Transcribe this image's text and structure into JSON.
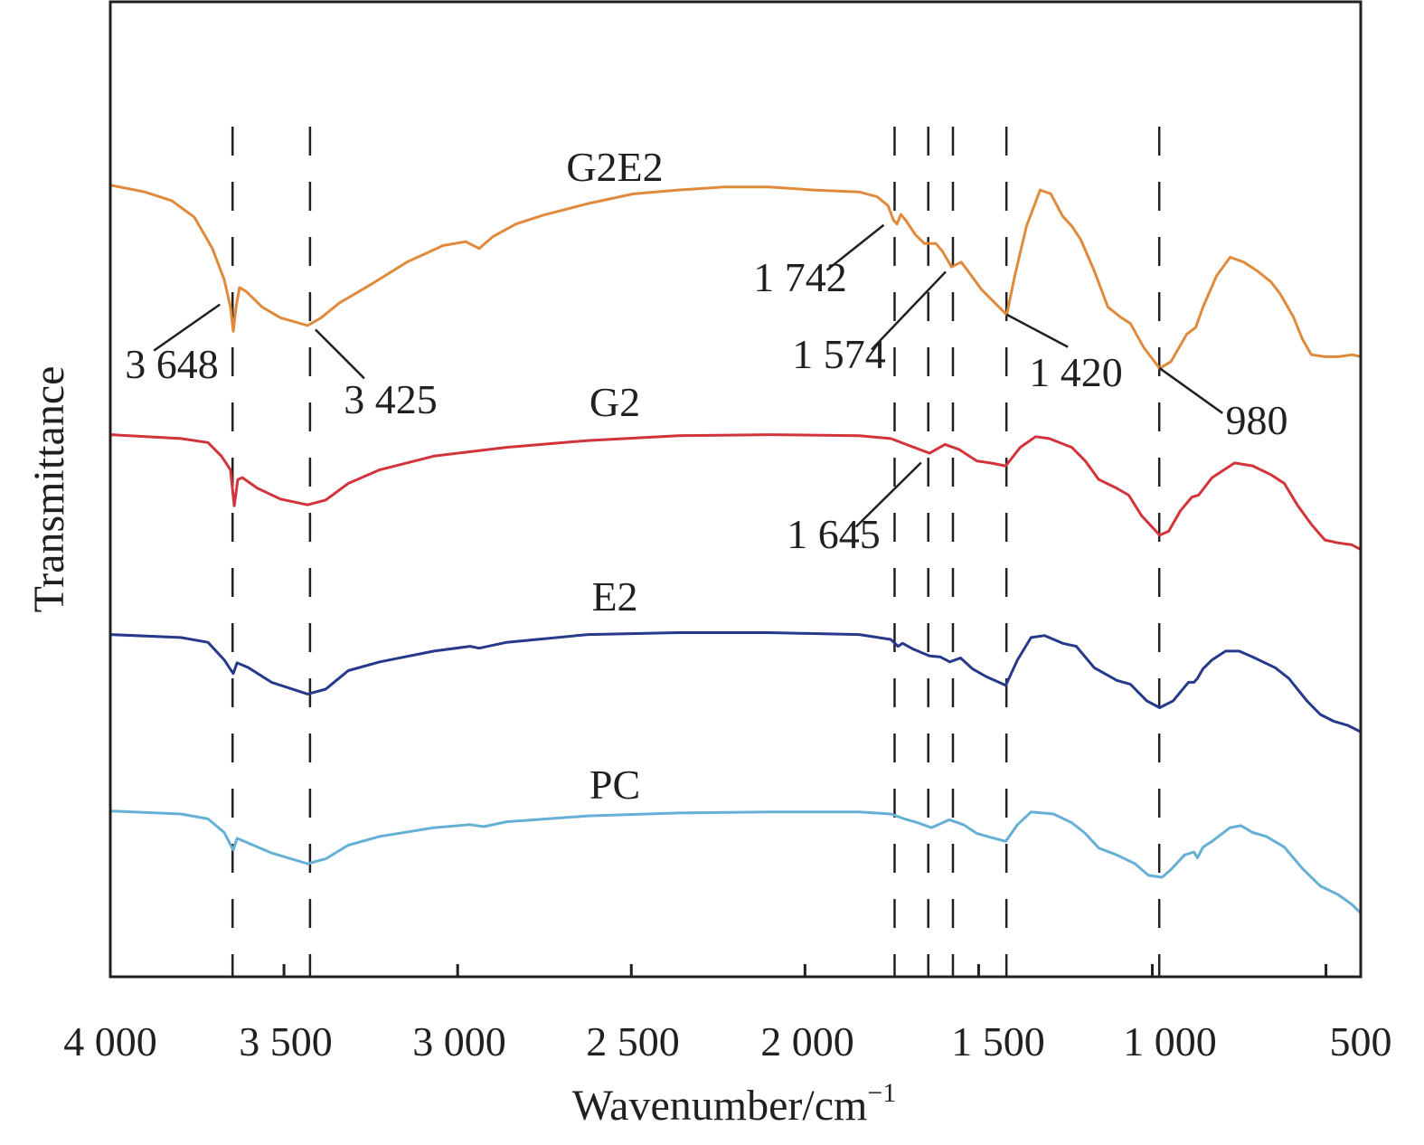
{
  "chart_data": {
    "type": "line",
    "title": "",
    "xlabel": "Wavenumber/cm",
    "xlabel_superscript": "−1",
    "ylabel": "Transmittance",
    "xlim": [
      4000,
      400
    ],
    "ylim": [
      0,
      100
    ],
    "x_reversed": true,
    "y_ticks_shown": false,
    "grid": false,
    "x_tick_labels": [
      {
        "value": 4000,
        "label": "4 000"
      },
      {
        "value": 3500,
        "label": "3 500"
      },
      {
        "value": 3000,
        "label": "3 000"
      },
      {
        "value": 2500,
        "label": "2 500"
      },
      {
        "value": 2000,
        "label": "2 000"
      },
      {
        "value": 1500,
        "label": "1 500"
      },
      {
        "value": 1000,
        "label": "1 000"
      },
      {
        "value": 500,
        "label": "500"
      }
    ],
    "minor_ticks": [
      3500,
      3000,
      2500,
      2000,
      1500,
      1000,
      500
    ],
    "reference_lines": [
      3648,
      3425,
      1742,
      1645,
      1574,
      1420,
      980
    ],
    "series": [
      {
        "name": "G2E2",
        "color": "#e08a3c",
        "x": [
          4000,
          3901,
          3823,
          3758,
          3706,
          3672,
          3654,
          3646,
          3638,
          3628,
          3609,
          3563,
          3510,
          3432,
          3393,
          3341,
          3250,
          3146,
          3042,
          2977,
          2938,
          2899,
          2833,
          2755,
          2625,
          2495,
          2365,
          2234,
          2104,
          1974,
          1844,
          1792,
          1761,
          1745,
          1735,
          1724,
          1708,
          1682,
          1656,
          1623,
          1604,
          1578,
          1550,
          1531,
          1492,
          1453,
          1419,
          1396,
          1362,
          1323,
          1292,
          1258,
          1232,
          1206,
          1167,
          1128,
          1089,
          1063,
          1024,
          979,
          946,
          901,
          875,
          854,
          815,
          776,
          737,
          698,
          659,
          633,
          594,
          568,
          542,
          503,
          464,
          425,
          399
        ],
        "y": [
          81.2,
          80.5,
          79.6,
          77.9,
          74.7,
          71.5,
          68.7,
          66.2,
          68.7,
          70.7,
          70.3,
          68.7,
          67.6,
          66.8,
          67.6,
          69.1,
          71.0,
          73.3,
          75.0,
          75.4,
          74.7,
          75.9,
          77.2,
          78.1,
          79.3,
          80.3,
          80.7,
          81.0,
          81.0,
          80.7,
          80.5,
          80.0,
          79.1,
          77.6,
          77.2,
          78.2,
          77.5,
          76.1,
          75.2,
          75.2,
          74.4,
          72.8,
          73.3,
          72.4,
          70.5,
          69.1,
          67.9,
          71.9,
          77.0,
          80.7,
          80.3,
          78.0,
          77.0,
          75.6,
          72.4,
          68.7,
          67.6,
          67.0,
          64.5,
          62.4,
          63.1,
          65.9,
          66.6,
          68.7,
          71.9,
          73.8,
          73.3,
          72.4,
          71.3,
          70.1,
          67.7,
          65.4,
          63.8,
          63.6,
          63.6,
          63.8,
          63.6
        ]
      },
      {
        "name": "G2",
        "color": "#d1343a",
        "x": [
          4000,
          3797,
          3719,
          3680,
          3654,
          3643,
          3633,
          3620,
          3576,
          3510,
          3432,
          3380,
          3315,
          3224,
          3068,
          2859,
          2625,
          2365,
          2104,
          1844,
          1753,
          1701,
          1641,
          1597,
          1557,
          1505,
          1466,
          1422,
          1380,
          1336,
          1297,
          1232,
          1193,
          1154,
          1102,
          1068,
          1031,
          979,
          953,
          919,
          886,
          867,
          828,
          763,
          711,
          659,
          620,
          581,
          542,
          503,
          464,
          425,
          399
        ],
        "y": [
          55.6,
          55.2,
          54.8,
          53.4,
          52.0,
          48.3,
          51.0,
          51.2,
          50.1,
          49.0,
          48.4,
          48.9,
          50.6,
          52.0,
          53.4,
          54.3,
          55.0,
          55.5,
          55.6,
          55.5,
          55.2,
          54.5,
          53.7,
          54.6,
          54.1,
          52.9,
          52.7,
          52.4,
          54.3,
          55.4,
          55.2,
          54.3,
          52.9,
          51.0,
          50.1,
          49.4,
          47.3,
          45.3,
          45.7,
          47.8,
          49.2,
          49.4,
          51.2,
          52.7,
          52.4,
          51.5,
          50.6,
          48.3,
          46.4,
          44.8,
          44.5,
          44.3,
          43.8
        ]
      },
      {
        "name": "E2",
        "color": "#27398a",
        "x": [
          4000,
          3797,
          3719,
          3672,
          3646,
          3635,
          3602,
          3536,
          3432,
          3380,
          3315,
          3224,
          3068,
          2964,
          2938,
          2859,
          2625,
          2365,
          2104,
          1844,
          1753,
          1732,
          1719,
          1688,
          1641,
          1610,
          1583,
          1552,
          1518,
          1479,
          1422,
          1388,
          1349,
          1310,
          1258,
          1219,
          1167,
          1102,
          1063,
          1016,
          979,
          940,
          896,
          880,
          870,
          854,
          828,
          789,
          750,
          711,
          646,
          607,
          555,
          516,
          477,
          438,
          399
        ],
        "y": [
          35.1,
          34.8,
          34.3,
          32.5,
          31.1,
          32.2,
          31.7,
          30.2,
          29.0,
          29.5,
          31.4,
          32.3,
          33.4,
          33.9,
          33.7,
          34.3,
          35.1,
          35.3,
          35.3,
          35.1,
          34.6,
          33.9,
          34.2,
          33.6,
          32.9,
          32.8,
          32.3,
          32.7,
          31.6,
          30.8,
          29.9,
          32.5,
          34.8,
          35.0,
          34.2,
          33.9,
          31.7,
          30.4,
          30.0,
          28.3,
          27.6,
          28.3,
          30.2,
          30.2,
          30.6,
          31.6,
          32.5,
          33.4,
          33.4,
          32.8,
          31.7,
          30.6,
          28.3,
          26.9,
          26.2,
          25.8,
          25.1
        ]
      },
      {
        "name": "PC",
        "color": "#66b0d6",
        "x": [
          4000,
          3797,
          3719,
          3672,
          3646,
          3635,
          3602,
          3536,
          3432,
          3380,
          3315,
          3224,
          3068,
          2964,
          2925,
          2859,
          2625,
          2365,
          2104,
          1844,
          1753,
          1714,
          1675,
          1636,
          1584,
          1544,
          1505,
          1466,
          1422,
          1388,
          1349,
          1284,
          1232,
          1193,
          1154,
          1102,
          1050,
          1011,
          972,
          946,
          907,
          880,
          870,
          854,
          828,
          776,
          745,
          711,
          672,
          620,
          568,
          516,
          464,
          425,
          399
        ],
        "y": [
          17.0,
          16.7,
          16.2,
          14.8,
          13.0,
          14.2,
          13.7,
          12.7,
          11.6,
          12.1,
          13.5,
          14.4,
          15.3,
          15.6,
          15.4,
          15.9,
          16.5,
          16.8,
          16.9,
          16.9,
          16.7,
          16.2,
          15.8,
          15.3,
          16.1,
          15.6,
          14.7,
          14.3,
          13.9,
          15.6,
          16.9,
          16.7,
          15.8,
          14.7,
          13.2,
          12.5,
          11.6,
          10.4,
          10.2,
          11.0,
          12.5,
          12.8,
          12.2,
          13.3,
          13.9,
          15.3,
          15.5,
          14.8,
          14.4,
          13.3,
          11.1,
          9.3,
          8.4,
          7.4,
          6.5
        ]
      }
    ],
    "series_labels": [
      {
        "series": "G2E2",
        "text": "G2E2"
      },
      {
        "series": "G2",
        "text": "G2"
      },
      {
        "series": "E2",
        "text": "E2"
      },
      {
        "series": "PC",
        "text": "PC"
      }
    ],
    "annotations": [
      {
        "series": "G2E2",
        "x": 3648,
        "text": "3 648"
      },
      {
        "series": "G2E2",
        "x": 3425,
        "text": "3 425"
      },
      {
        "series": "G2E2",
        "x": 1742,
        "text": "1 742"
      },
      {
        "series": "G2E2",
        "x": 1574,
        "text": "1 574"
      },
      {
        "series": "G2E2",
        "x": 1420,
        "text": "1 420"
      },
      {
        "series": "G2E2",
        "x": 980,
        "text": "980"
      },
      {
        "series": "G2",
        "x": 1645,
        "text": "1 645"
      }
    ]
  }
}
